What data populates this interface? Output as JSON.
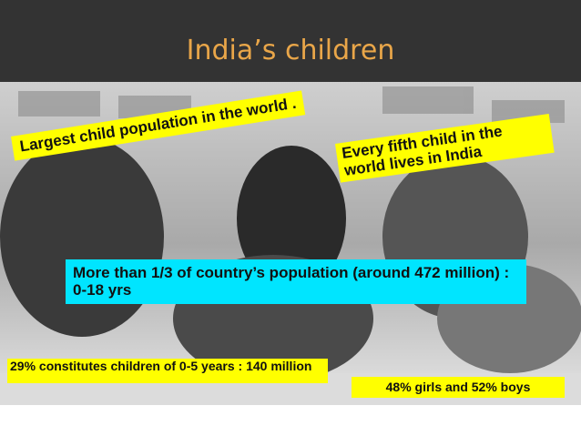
{
  "header": {
    "title": "India’s children"
  },
  "callouts": [
    {
      "text": "Largest child population in the world ."
    },
    {
      "text": "Every fifth child in the world lives in India"
    },
    {
      "text": "More than 1/3 of country’s population (around 472 million) : 0-18 yrs"
    },
    {
      "text": "29% constitutes children of 0-5 years : 140 million"
    },
    {
      "text": "48% girls and 52% boys"
    }
  ]
}
